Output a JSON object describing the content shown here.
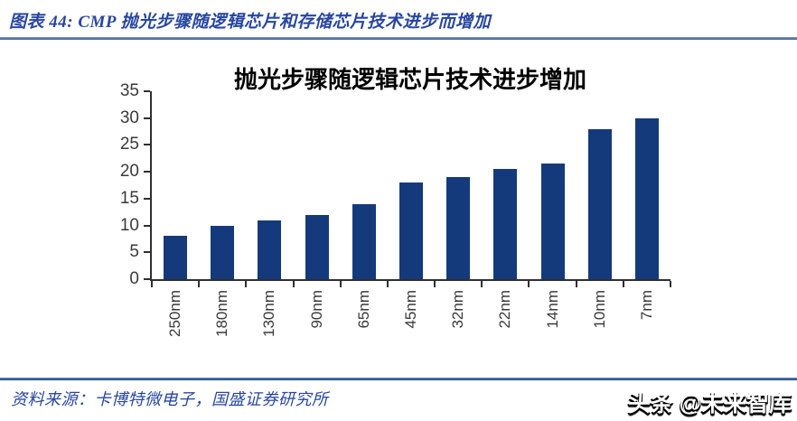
{
  "header": {
    "caption": "图表 44:  CMP 抛光步骤随逻辑芯片和存储芯片技术进步而增加"
  },
  "chart_data": {
    "type": "bar",
    "title": "抛光步骤随逻辑芯片技术进步增加",
    "categories": [
      "250nm",
      "180nm",
      "130nm",
      "90nm",
      "65nm",
      "45nm",
      "32nm",
      "22nm",
      "14nm",
      "10nm",
      "7nm"
    ],
    "values": [
      8,
      10,
      11,
      12,
      14,
      18,
      19,
      20.5,
      21.5,
      28,
      30
    ],
    "xlabel": "",
    "ylabel": "",
    "ylim": [
      0,
      35
    ],
    "yticks": [
      0,
      5,
      10,
      15,
      20,
      25,
      30,
      35
    ],
    "grid": false,
    "legend_position": "none",
    "bar_color": "#143a7b"
  },
  "footer": {
    "source": "资料来源：卡博特微电子，国盛证券研究所"
  },
  "watermark": {
    "text": "头条 @未来智库"
  }
}
